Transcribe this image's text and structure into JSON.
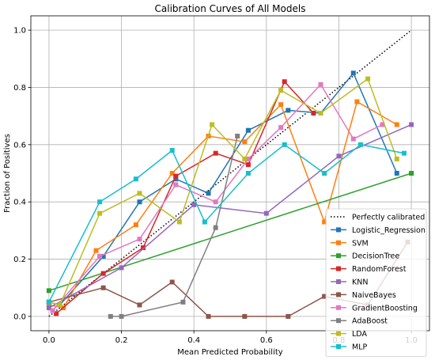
{
  "chart_data": {
    "type": "line",
    "title": "Calibration Curves of All Models",
    "xlabel": "Mean Predicted Probability",
    "ylabel": "Fraction of Positives",
    "xlim": [
      -0.05,
      1.05
    ],
    "ylim": [
      -0.05,
      1.05
    ],
    "xticks": [
      "0.0",
      "0.2",
      "0.4",
      "0.6",
      "0.8",
      "1.0"
    ],
    "yticks": [
      "0.0",
      "0.2",
      "0.4",
      "0.6",
      "0.8",
      "1.0"
    ],
    "grid": true,
    "legend_position": "lower-right",
    "reference": {
      "name": "Perfectly calibrated",
      "x": [
        0,
        1
      ],
      "y": [
        0,
        1
      ],
      "color": "#000000",
      "style": "dotted"
    },
    "series": [
      {
        "name": "Logistic_Regression",
        "color": "#1f77b4",
        "x": [
          0.0,
          0.03,
          0.15,
          0.25,
          0.35,
          0.44,
          0.55,
          0.66,
          0.75,
          0.84,
          0.96
        ],
        "y": [
          0.05,
          0.04,
          0.21,
          0.4,
          0.48,
          0.43,
          0.65,
          0.72,
          0.71,
          0.85,
          0.5
        ]
      },
      {
        "name": "SVM",
        "color": "#ff7f0e",
        "x": [
          0.0,
          0.04,
          0.13,
          0.24,
          0.34,
          0.44,
          0.54,
          0.64,
          0.76,
          0.85,
          0.96
        ],
        "y": [
          0.04,
          0.03,
          0.23,
          0.32,
          0.5,
          0.63,
          0.61,
          0.74,
          0.33,
          0.75,
          0.67
        ]
      },
      {
        "name": "DecisionTree",
        "color": "#2ca02c",
        "x": [
          0.0,
          1.0
        ],
        "y": [
          0.09,
          0.5
        ]
      },
      {
        "name": "RandomForest",
        "color": "#d62728",
        "x": [
          0.02,
          0.15,
          0.26,
          0.35,
          0.46,
          0.55,
          0.65,
          0.73
        ],
        "y": [
          0.01,
          0.15,
          0.24,
          0.49,
          0.57,
          0.53,
          0.82,
          0.71
        ]
      },
      {
        "name": "KNN",
        "color": "#9467bd",
        "x": [
          0.0,
          0.2,
          0.4,
          0.6,
          0.8,
          1.0
        ],
        "y": [
          0.03,
          0.17,
          0.39,
          0.36,
          0.56,
          0.67
        ]
      },
      {
        "name": "NaiveBayes",
        "color": "#8c564b",
        "x": [
          0.0,
          0.15,
          0.25,
          0.34,
          0.44,
          0.54,
          0.66,
          0.76,
          0.88,
          0.99
        ],
        "y": [
          0.05,
          0.1,
          0.04,
          0.12,
          0.0,
          0.0,
          0.0,
          0.07,
          0.04,
          0.26
        ]
      },
      {
        "name": "GradientBoosting",
        "color": "#e377c2",
        "x": [
          0.01,
          0.14,
          0.25,
          0.35,
          0.46,
          0.55,
          0.64,
          0.75,
          0.84,
          0.92
        ],
        "y": [
          0.02,
          0.21,
          0.27,
          0.46,
          0.4,
          0.55,
          0.66,
          0.81,
          0.62,
          0.67
        ]
      },
      {
        "name": "AdaBoost",
        "color": "#7f7f7f",
        "x": [
          0.17,
          0.2,
          0.37,
          0.46,
          0.52
        ],
        "y": [
          0.0,
          0.0,
          0.05,
          0.31,
          0.63
        ]
      },
      {
        "name": "LDA",
        "color": "#bcbd22",
        "x": [
          0.0,
          0.03,
          0.14,
          0.25,
          0.36,
          0.45,
          0.54,
          0.64,
          0.75,
          0.88,
          0.96
        ],
        "y": [
          0.05,
          0.04,
          0.36,
          0.43,
          0.33,
          0.67,
          0.55,
          0.79,
          0.71,
          0.83,
          0.55
        ]
      },
      {
        "name": "MLP",
        "color": "#17becf",
        "x": [
          0.0,
          0.14,
          0.24,
          0.34,
          0.43,
          0.55,
          0.65,
          0.76,
          0.86,
          0.98
        ],
        "y": [
          0.05,
          0.4,
          0.48,
          0.58,
          0.33,
          0.5,
          0.6,
          0.5,
          0.6,
          0.57
        ]
      }
    ]
  }
}
